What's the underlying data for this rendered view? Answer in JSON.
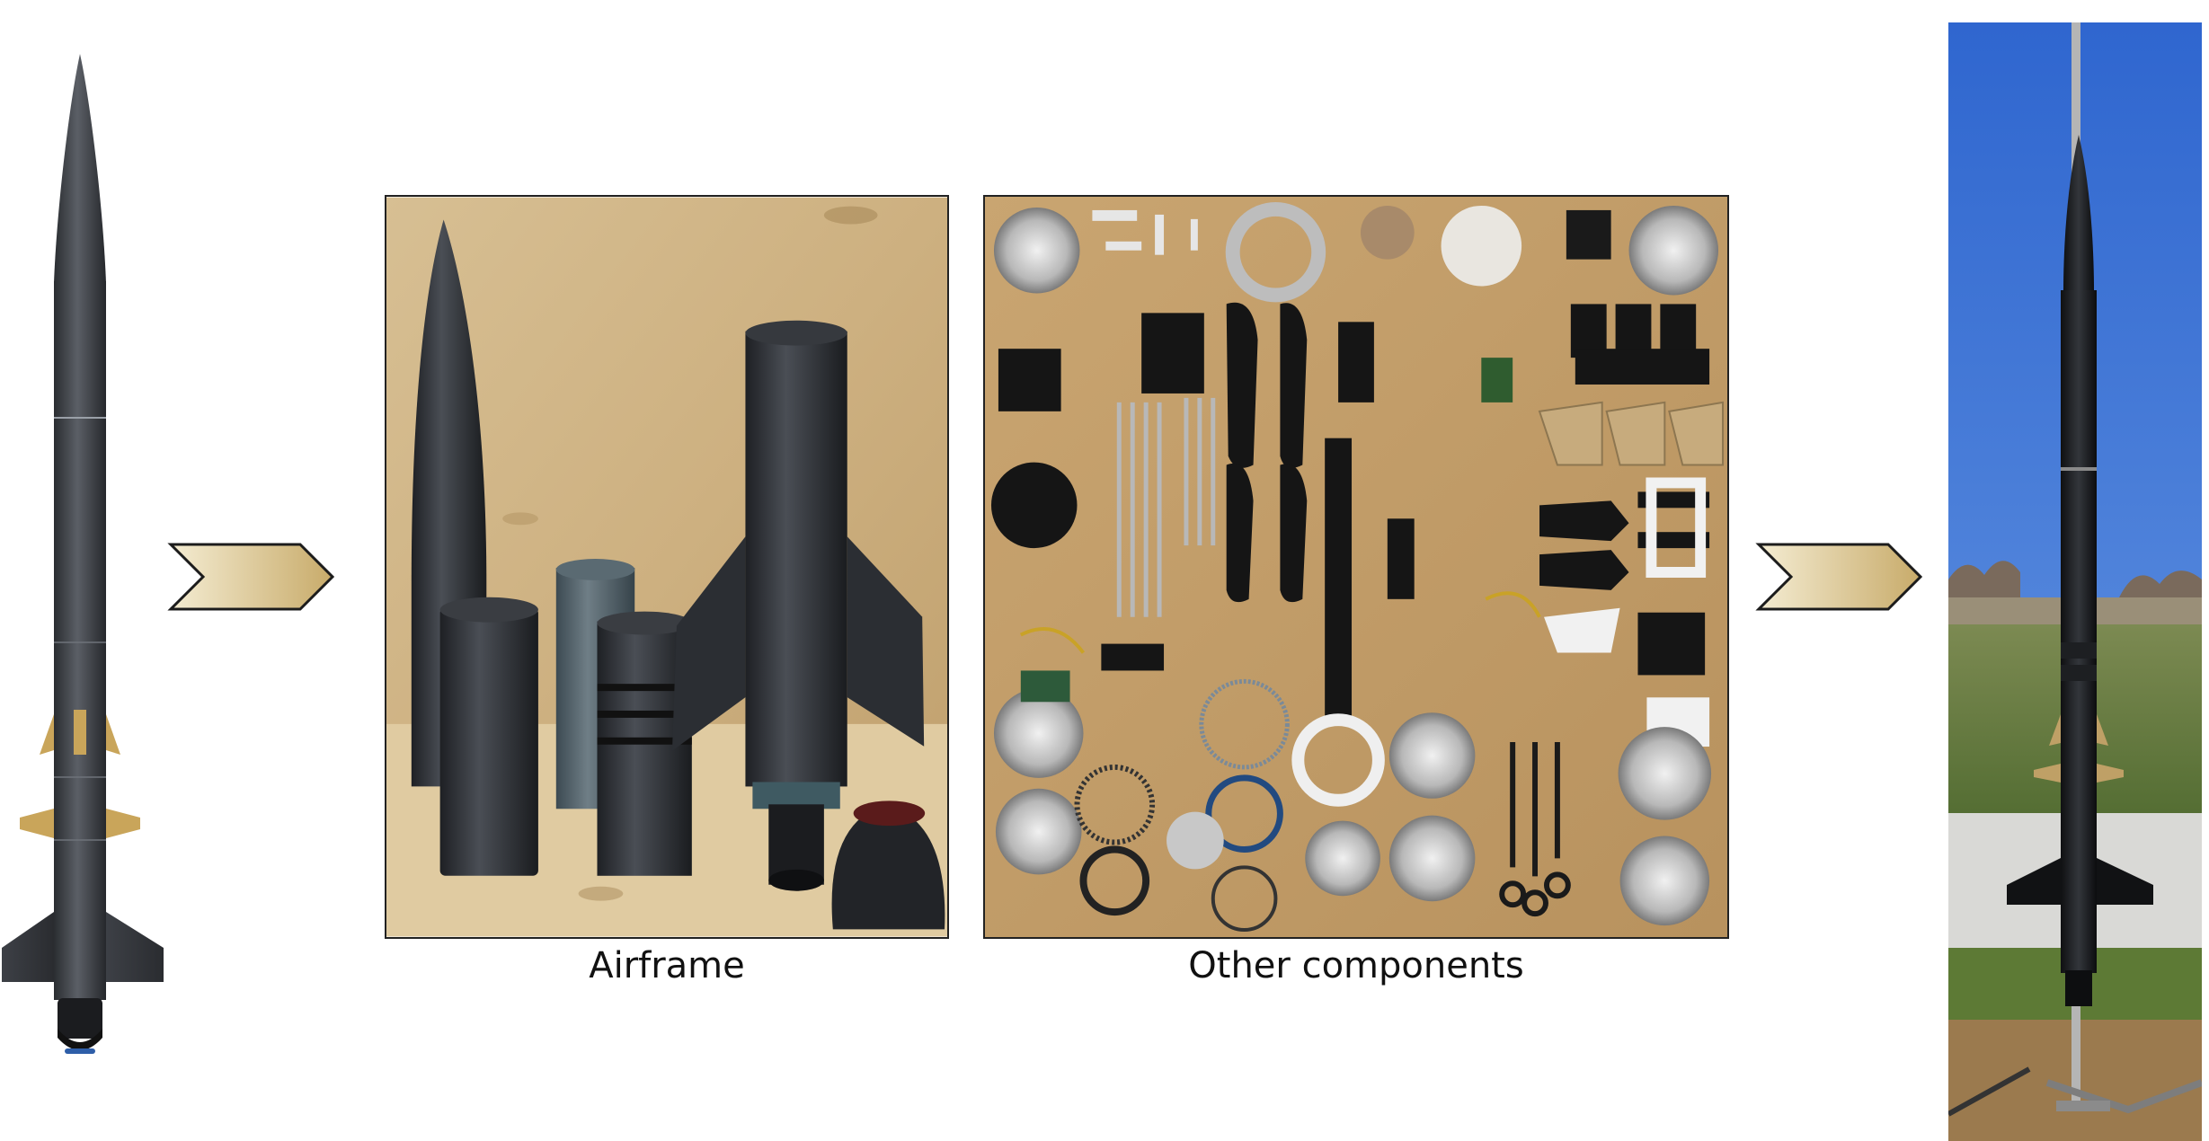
{
  "captions": {
    "airframe": "Airframe",
    "components": "Other components"
  },
  "colors": {
    "arrow_fill_light": "#f4ecd2",
    "arrow_fill_dark": "#c8ab6a",
    "plywood": "#d9bd8a",
    "carbon": "#2c2f33",
    "sky": "#3f79d6"
  },
  "images": {
    "cad_model": "rocket-cad-render",
    "airframe_photo": "airframe-parts-photo",
    "components_photo": "components-flatlay-photo",
    "launch_photo": "rocket-on-launch-rail-photo"
  }
}
